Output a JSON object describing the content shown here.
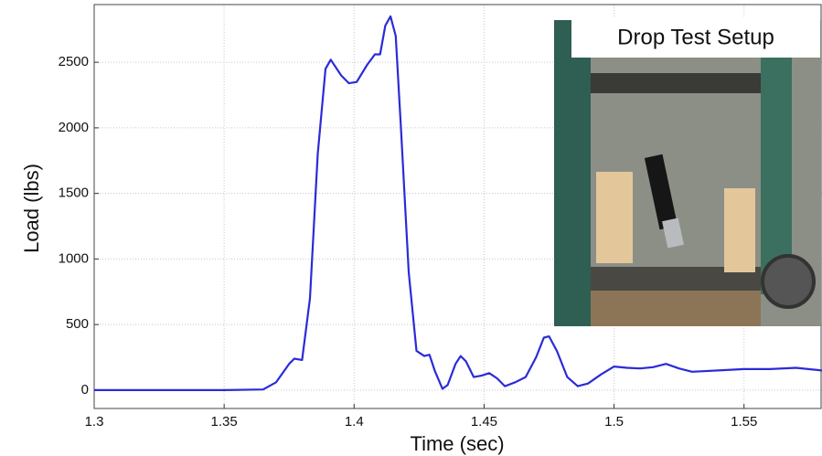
{
  "chart_data": {
    "type": "line",
    "xlabel": "Time (sec)",
    "ylabel": "Load (lbs)",
    "annotation": "Drop Test Setup",
    "color": "#2b2bd8",
    "grid": true,
    "xlim": [
      1.3,
      1.58
    ],
    "ylim": [
      -140,
      2940
    ],
    "xticks": [
      1.3,
      1.35,
      1.4,
      1.45,
      1.5,
      1.55
    ],
    "yticks": [
      0,
      500,
      1000,
      1500,
      2000,
      2500
    ],
    "x": [
      1.3,
      1.35,
      1.365,
      1.37,
      1.375,
      1.377,
      1.38,
      1.383,
      1.386,
      1.389,
      1.391,
      1.395,
      1.398,
      1.401,
      1.405,
      1.408,
      1.41,
      1.412,
      1.414,
      1.416,
      1.418,
      1.421,
      1.424,
      1.427,
      1.429,
      1.431,
      1.434,
      1.436,
      1.439,
      1.441,
      1.443,
      1.446,
      1.449,
      1.452,
      1.455,
      1.458,
      1.462,
      1.466,
      1.47,
      1.473,
      1.475,
      1.478,
      1.482,
      1.486,
      1.49,
      1.495,
      1.5,
      1.505,
      1.51,
      1.515,
      1.52,
      1.525,
      1.53,
      1.54,
      1.55,
      1.56,
      1.57,
      1.58
    ],
    "values": [
      0,
      0,
      5,
      60,
      200,
      240,
      230,
      700,
      1800,
      2450,
      2520,
      2400,
      2340,
      2350,
      2480,
      2560,
      2560,
      2780,
      2850,
      2700,
      2000,
      900,
      300,
      260,
      270,
      150,
      10,
      40,
      200,
      260,
      220,
      100,
      110,
      130,
      90,
      30,
      60,
      100,
      250,
      400,
      410,
      300,
      100,
      30,
      50,
      120,
      180,
      170,
      165,
      175,
      200,
      165,
      140,
      150,
      160,
      160,
      170,
      150
    ]
  }
}
